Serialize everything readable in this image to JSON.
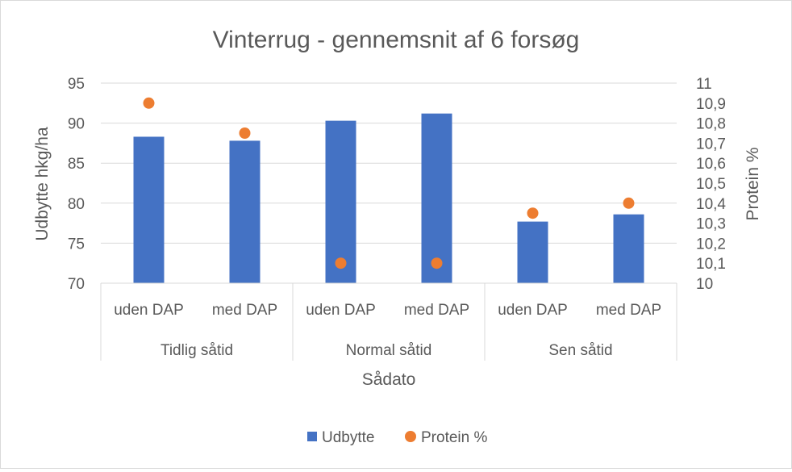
{
  "chart_data": {
    "type": "bar",
    "title": "Vinterrug - gennemsnit af 6 forsøg",
    "xlabel": "Sådato",
    "ylabel": "Udbytte hkg/ha",
    "y2label": "Protein %",
    "ylim": [
      70,
      95
    ],
    "y_ticks": [
      "70",
      "75",
      "80",
      "85",
      "90",
      "95"
    ],
    "y2lim": [
      10,
      11
    ],
    "y2_ticks": [
      "10",
      "10,1",
      "10,2",
      "10,3",
      "10,4",
      "10,5",
      "10,6",
      "10,7",
      "10,8",
      "10,9",
      "11"
    ],
    "categories": [
      "uden DAP",
      "med DAP",
      "uden DAP",
      "med DAP",
      "uden DAP",
      "med DAP"
    ],
    "groups": [
      "Tidlig såtid",
      "Normal såtid",
      "Sen såtid"
    ],
    "series": [
      {
        "name": "Udbytte",
        "type": "bar",
        "axis": "left",
        "color": "#4472c4",
        "values": [
          88.3,
          87.8,
          90.3,
          91.2,
          77.7,
          78.6
        ]
      },
      {
        "name": "Protein %",
        "type": "scatter",
        "axis": "right",
        "color": "#ed7d31",
        "values": [
          10.9,
          10.75,
          10.1,
          10.1,
          10.35,
          10.4
        ]
      }
    ],
    "grid": true,
    "legend": "bottom"
  }
}
